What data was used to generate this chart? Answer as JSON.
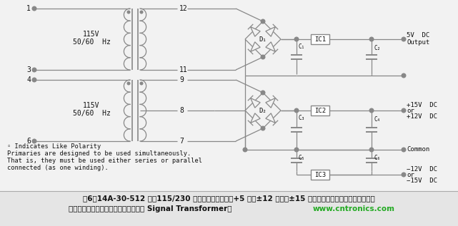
{
  "bg_color": "#f2f2f2",
  "line_color": "#888888",
  "text_color": "#111111",
  "note1": "◦ Indicates Like Polarity",
  "note2": "Primaries are designed to be used simultaneously.",
  "note3": "That is, they must be used either series or parallel",
  "note4": "connected (as one winding).",
  "label_115v": "115V",
  "label_50hz": "50/60  Hz",
  "label_D1": "D₁",
  "label_D2": "D₂",
  "label_C1": "C₁",
  "label_C2": "C₂",
  "label_C3": "C₃",
  "label_C4": "C₄",
  "label_C5": "C₅",
  "label_C6": "C₆",
  "label_IC1": "IC1",
  "label_IC2": "IC2",
  "label_IC3": "IC3",
  "out_5v1": "5V  DC",
  "out_5v2": "Output",
  "out_p15": "+15V  DC",
  "out_or1": "or",
  "out_p12": "+12V  DC",
  "out_com": "Common",
  "out_n12": "−12V  DC",
  "out_or2": "or",
  "out_n15": "−15V  DC",
  "cap_line1": "图6：14A-30-512 采用115/230 伏输入电压，适用于+5 伏或±12 伏直流±15 伏直流电源，具体取决于用户如何",
  "cap_line2": "连接初级和次级侧绕组。（图片来源： Signal Transformer）",
  "cap_url": "www.cntronics.com"
}
